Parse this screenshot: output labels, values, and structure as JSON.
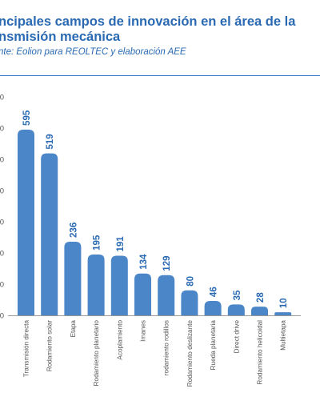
{
  "header": {
    "title_line1": "ncipales campos de innovación en el área de la",
    "title_line2": "nsmisión mecánica",
    "source": "nte: Eolion para REOLTEC y elaboración AEE"
  },
  "colors": {
    "bar": "#4a86c8",
    "title": "#2a6ab3",
    "value_label": "#2a6ab3",
    "axis_text": "#555555"
  },
  "chart_data": {
    "type": "bar",
    "categories": [
      "Transmisión directa",
      "Rodamiento solar",
      "Etapa",
      "Rodamiento planetario",
      "Acoplamiento",
      "Imanes",
      "rodamiento rodillos",
      "Rodamiento deslizante",
      "Rueda planetaria",
      "Direct drive",
      "Rodamiento helicoidal",
      "Multietapa"
    ],
    "values": [
      595,
      519,
      236,
      195,
      191,
      134,
      129,
      80,
      46,
      35,
      28,
      10
    ],
    "ytick_labels": [
      "0",
      "0",
      "0",
      "0",
      "0",
      "0",
      "0",
      "0"
    ],
    "ylim": [
      0,
      700
    ],
    "title": "",
    "xlabel": "",
    "ylabel": "",
    "grid": false
  }
}
